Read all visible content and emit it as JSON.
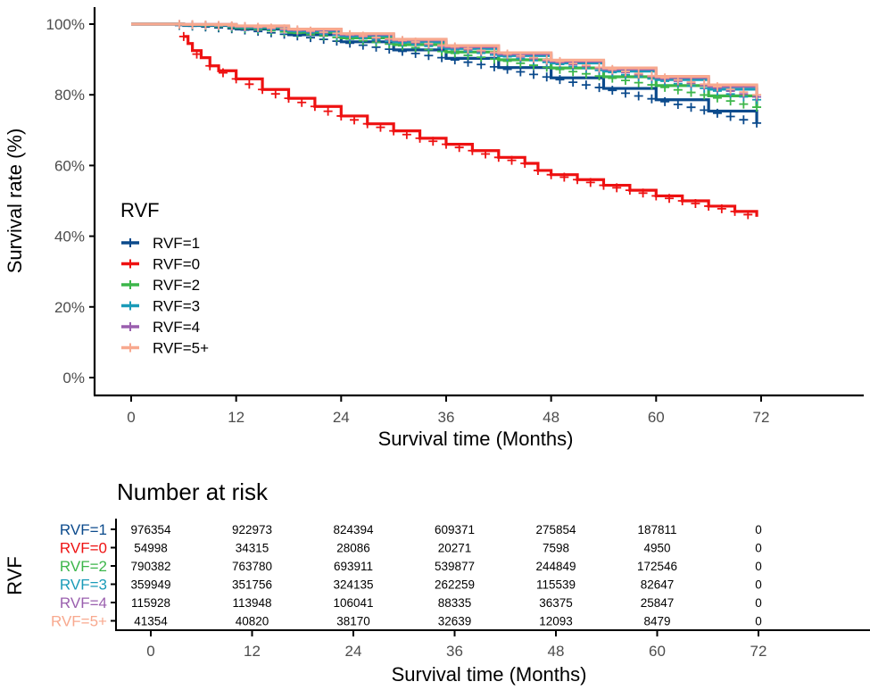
{
  "chart_data": [
    {
      "type": "line",
      "subtype": "kaplan-meier",
      "title": "",
      "xlabel": "Survival time (Months)",
      "ylabel": "Survival rate (%)",
      "xlim": [
        -3,
        82
      ],
      "ylim": [
        0,
        100
      ],
      "xticks": [
        0,
        12,
        24,
        36,
        48,
        60,
        72
      ],
      "xtick_labels": [
        "0",
        "12",
        "24",
        "36",
        "48",
        "60",
        "72"
      ],
      "yticks": [
        0,
        20,
        40,
        60,
        80,
        100
      ],
      "ytick_labels": [
        "0%",
        "20%",
        "40%",
        "60%",
        "80%",
        "100%"
      ],
      "grid": false,
      "censor_marks": true,
      "legend": {
        "title": "RVF",
        "position": "bottom-left-inside"
      },
      "series": [
        {
          "name": "RVF=1",
          "color": "#0b4a8c",
          "x": [
            0,
            6,
            12,
            18,
            24,
            30,
            36,
            42,
            48,
            54,
            60,
            66,
            71.5
          ],
          "y": [
            100,
            99.6,
            98.6,
            97.0,
            95.0,
            92.7,
            90.3,
            87.7,
            84.8,
            81.8,
            78.6,
            75.4,
            72.0
          ]
        },
        {
          "name": "RVF=0",
          "color": "#ee1111",
          "x": [
            6,
            6.5,
            7,
            8,
            9,
            10,
            12,
            15,
            18,
            21,
            24,
            27,
            30,
            33,
            36,
            39,
            42,
            45,
            46.5,
            48,
            51,
            54,
            57,
            60,
            63,
            66,
            69,
            71.5
          ],
          "y": [
            96.5,
            94.5,
            92.5,
            90.5,
            88.2,
            86.8,
            84.5,
            81.5,
            79.0,
            76.7,
            74.0,
            71.8,
            69.8,
            67.7,
            66.0,
            64.2,
            62.3,
            60.6,
            58.6,
            57.4,
            56.0,
            54.4,
            53.0,
            51.4,
            50.0,
            48.5,
            47.0,
            45.5
          ]
        },
        {
          "name": "RVF=2",
          "color": "#3cb64a",
          "x": [
            0,
            6,
            12,
            18,
            24,
            30,
            36,
            42,
            48,
            54,
            60,
            66,
            71.5
          ],
          "y": [
            100,
            99.8,
            99.0,
            97.7,
            96.1,
            94.2,
            92.1,
            89.9,
            87.6,
            85.1,
            82.6,
            79.7,
            76.5
          ]
        },
        {
          "name": "RVF=3",
          "color": "#1a9bb8",
          "x": [
            0,
            6,
            12,
            18,
            24,
            30,
            36,
            42,
            48,
            54,
            60,
            66,
            71.5
          ],
          "y": [
            100,
            99.8,
            99.2,
            98.1,
            96.7,
            95.0,
            93.1,
            91.1,
            89.0,
            86.7,
            84.3,
            81.6,
            78.6
          ]
        },
        {
          "name": "RVF=4",
          "color": "#9a5fae",
          "x": [
            0,
            6,
            12,
            18,
            24,
            30,
            36,
            42,
            48,
            54,
            60,
            66,
            71.5
          ],
          "y": [
            100,
            99.9,
            99.4,
            98.4,
            97.1,
            95.5,
            93.6,
            91.6,
            89.5,
            87.3,
            84.9,
            82.4,
            79.4
          ]
        },
        {
          "name": "RVF=5+",
          "color": "#f8a98f",
          "x": [
            0,
            6,
            12,
            18,
            24,
            30,
            36,
            42,
            48,
            54,
            60,
            66,
            71.5
          ],
          "y": [
            100,
            99.9,
            99.5,
            98.6,
            97.3,
            95.7,
            93.9,
            91.9,
            89.8,
            87.6,
            85.2,
            82.8,
            80.0
          ]
        }
      ]
    },
    {
      "type": "table",
      "title": "Number at risk",
      "xlabel": "Survival time (Months)",
      "ylabel": "RVF",
      "xticks": [
        0,
        12,
        24,
        36,
        48,
        60,
        72
      ],
      "xtick_labels": [
        "0",
        "12",
        "24",
        "36",
        "48",
        "60",
        "72"
      ],
      "rows": [
        {
          "label": "RVF=1",
          "color": "#0b4a8c",
          "values": [
            "976354",
            "922973",
            "824394",
            "609371",
            "275854",
            "187811",
            "0"
          ]
        },
        {
          "label": "RVF=0",
          "color": "#ee1111",
          "values": [
            "54998",
            "34315",
            "28086",
            "20271",
            "7598",
            "4950",
            "0"
          ]
        },
        {
          "label": "RVF=2",
          "color": "#3cb64a",
          "values": [
            "790382",
            "763780",
            "693911",
            "539877",
            "244849",
            "172546",
            "0"
          ]
        },
        {
          "label": "RVF=3",
          "color": "#1a9bb8",
          "values": [
            "359949",
            "351756",
            "324135",
            "262259",
            "115539",
            "82647",
            "0"
          ]
        },
        {
          "label": "RVF=4",
          "color": "#9a5fae",
          "values": [
            "115928",
            "113948",
            "106041",
            "88335",
            "36375",
            "25847",
            "0"
          ]
        },
        {
          "label": "RVF=5+",
          "color": "#f8a98f",
          "values": [
            "41354",
            "40820",
            "38170",
            "32639",
            "12093",
            "8479",
            "0"
          ]
        }
      ]
    }
  ]
}
